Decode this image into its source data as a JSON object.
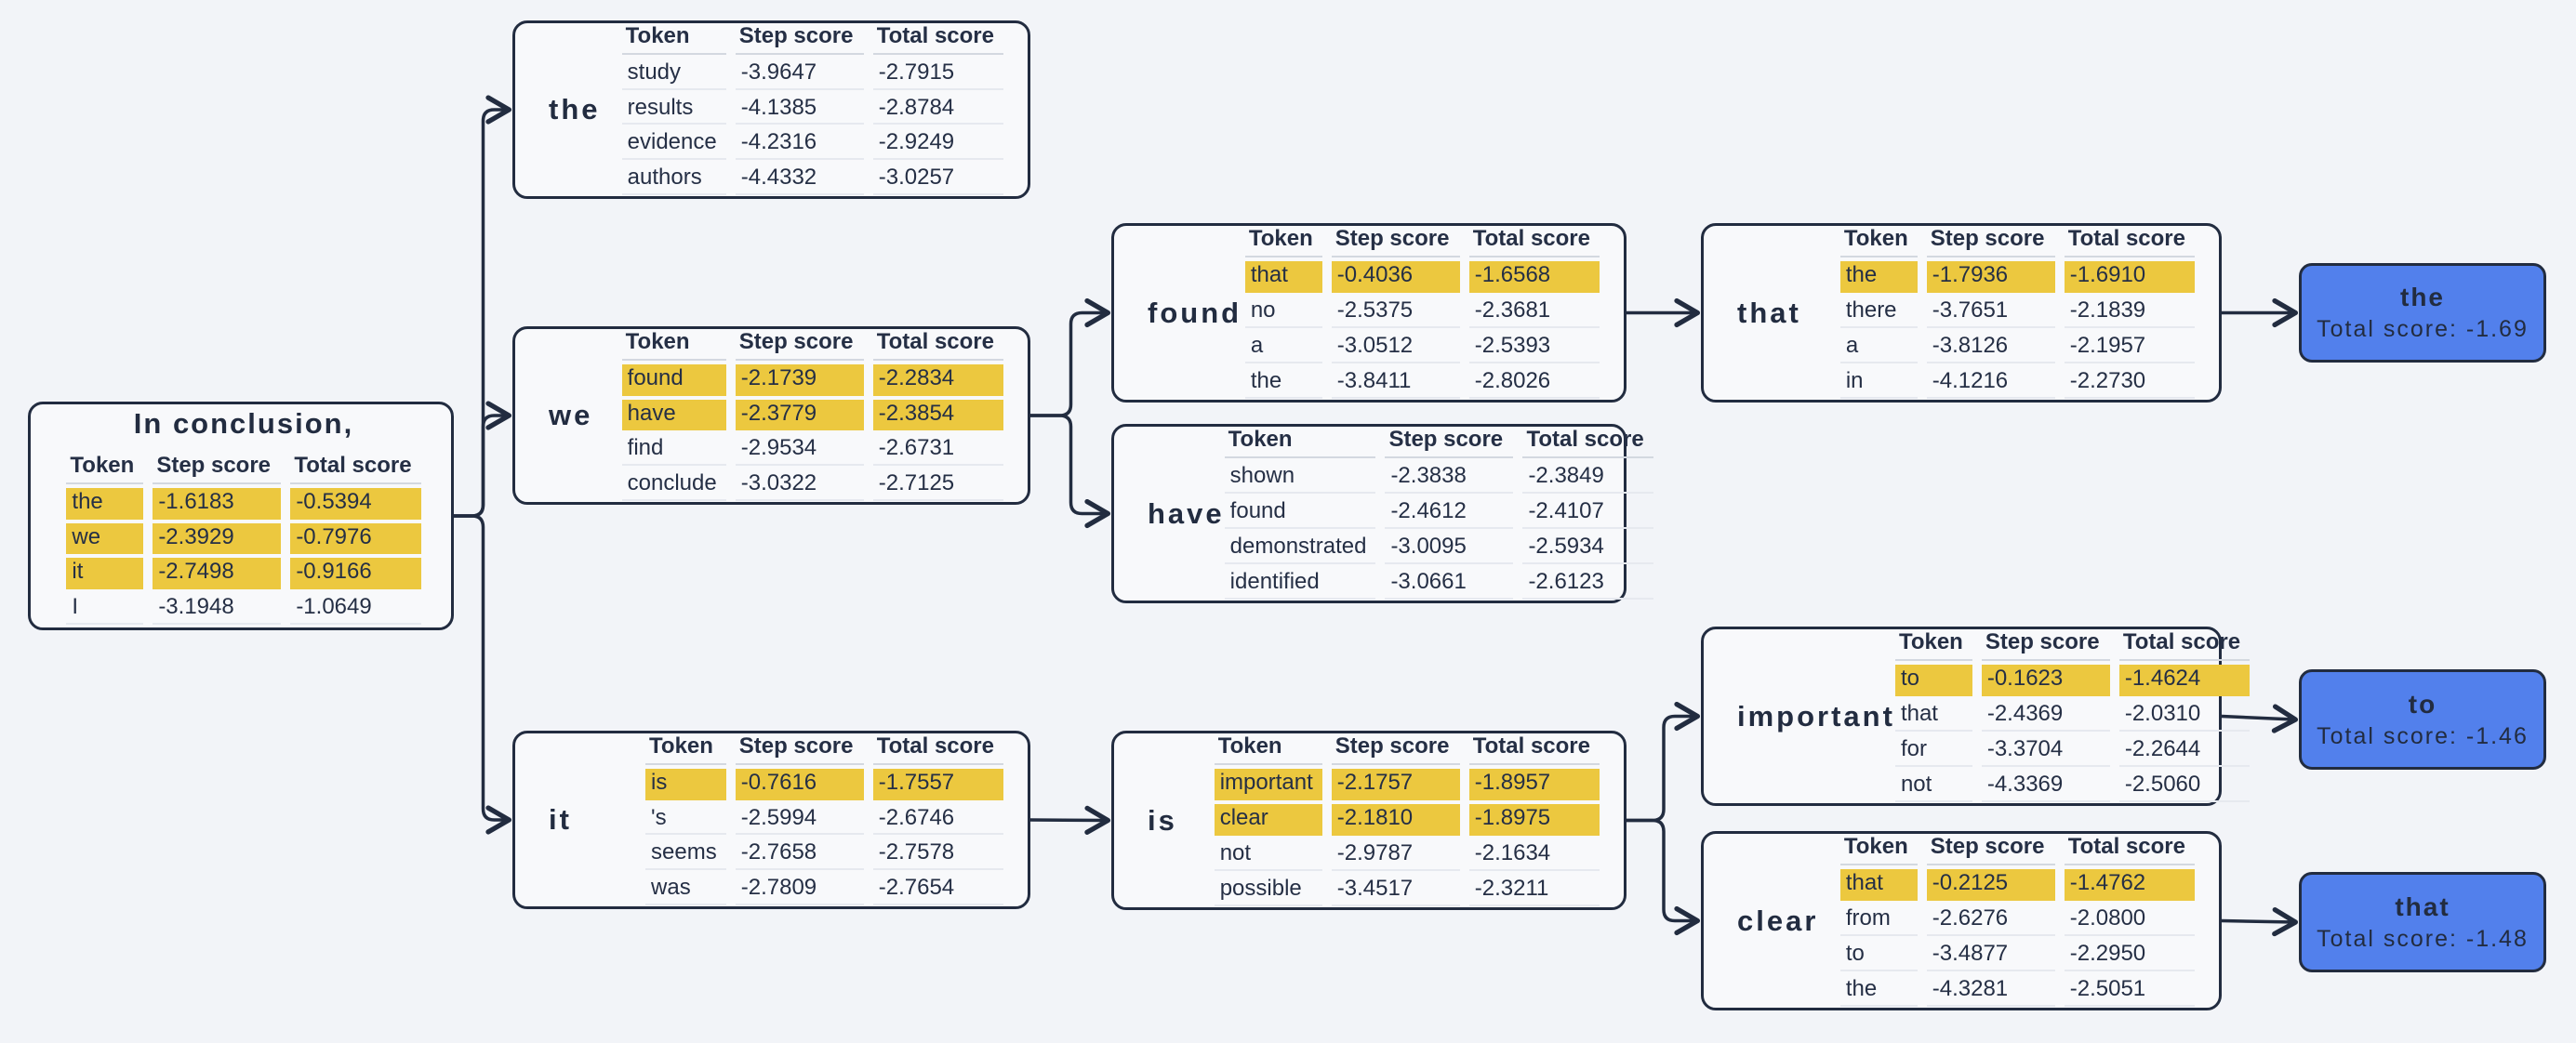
{
  "table_headers": [
    "Token",
    "Step score",
    "Total score"
  ],
  "colors": {
    "background": "#f2f4f8",
    "node_fill": "#f8f9fb",
    "outline": "#222c40",
    "highlight": "#ecc83f",
    "leaf_fill": "#5280ec"
  },
  "nodes": [
    {
      "id": "root",
      "type": "root",
      "title": "In conclusion,",
      "rows": [
        {
          "token": "the",
          "step": "-1.6183",
          "total": "-0.5394",
          "highlight": true
        },
        {
          "token": "we",
          "step": "-2.3929",
          "total": "-0.7976",
          "highlight": true
        },
        {
          "token": "it",
          "step": "-2.7498",
          "total": "-0.9166",
          "highlight": true
        },
        {
          "token": "I",
          "step": "-3.1948",
          "total": "-1.0649",
          "highlight": false
        }
      ]
    },
    {
      "id": "the",
      "type": "branch",
      "label": "the",
      "rows": [
        {
          "token": "study",
          "step": "-3.9647",
          "total": "-2.7915",
          "highlight": false
        },
        {
          "token": "results",
          "step": "-4.1385",
          "total": "-2.8784",
          "highlight": false
        },
        {
          "token": "evidence",
          "step": "-4.2316",
          "total": "-2.9249",
          "highlight": false
        },
        {
          "token": "authors",
          "step": "-4.4332",
          "total": "-3.0257",
          "highlight": false
        }
      ]
    },
    {
      "id": "we",
      "type": "branch",
      "label": "we",
      "rows": [
        {
          "token": "found",
          "step": "-2.1739",
          "total": "-2.2834",
          "highlight": true
        },
        {
          "token": "have",
          "step": "-2.3779",
          "total": "-2.3854",
          "highlight": true
        },
        {
          "token": "find",
          "step": "-2.9534",
          "total": "-2.6731",
          "highlight": false
        },
        {
          "token": "conclude",
          "step": "-3.0322",
          "total": "-2.7125",
          "highlight": false
        }
      ]
    },
    {
      "id": "it",
      "type": "branch",
      "label": "it",
      "rows": [
        {
          "token": "is",
          "step": "-0.7616",
          "total": "-1.7557",
          "highlight": true
        },
        {
          "token": "'s",
          "step": "-2.5994",
          "total": "-2.6746",
          "highlight": false
        },
        {
          "token": "seems",
          "step": "-2.7658",
          "total": "-2.7578",
          "highlight": false
        },
        {
          "token": "was",
          "step": "-2.7809",
          "total": "-2.7654",
          "highlight": false
        }
      ]
    },
    {
      "id": "found",
      "type": "branch",
      "label": "found",
      "rows": [
        {
          "token": "that",
          "step": "-0.4036",
          "total": "-1.6568",
          "highlight": true
        },
        {
          "token": "no",
          "step": "-2.5375",
          "total": "-2.3681",
          "highlight": false
        },
        {
          "token": "a",
          "step": "-3.0512",
          "total": "-2.5393",
          "highlight": false
        },
        {
          "token": "the",
          "step": "-3.8411",
          "total": "-2.8026",
          "highlight": false
        }
      ]
    },
    {
      "id": "have",
      "type": "branch",
      "label": "have",
      "rows": [
        {
          "token": "shown",
          "step": "-2.3838",
          "total": "-2.3849",
          "highlight": false
        },
        {
          "token": "found",
          "step": "-2.4612",
          "total": "-2.4107",
          "highlight": false
        },
        {
          "token": "demonstrated",
          "step": "-3.0095",
          "total": "-2.5934",
          "highlight": false
        },
        {
          "token": "identified",
          "step": "-3.0661",
          "total": "-2.6123",
          "highlight": false
        }
      ]
    },
    {
      "id": "is",
      "type": "branch",
      "label": "is",
      "rows": [
        {
          "token": "important",
          "step": "-2.1757",
          "total": "-1.8957",
          "highlight": true
        },
        {
          "token": "clear",
          "step": "-2.1810",
          "total": "-1.8975",
          "highlight": true
        },
        {
          "token": "not",
          "step": "-2.9787",
          "total": "-2.1634",
          "highlight": false
        },
        {
          "token": "possible",
          "step": "-3.4517",
          "total": "-2.3211",
          "highlight": false
        }
      ]
    },
    {
      "id": "that",
      "type": "branch",
      "label": "that",
      "rows": [
        {
          "token": "the",
          "step": "-1.7936",
          "total": "-1.6910",
          "highlight": true
        },
        {
          "token": "there",
          "step": "-3.7651",
          "total": "-2.1839",
          "highlight": false
        },
        {
          "token": "a",
          "step": "-3.8126",
          "total": "-2.1957",
          "highlight": false
        },
        {
          "token": "in",
          "step": "-4.1216",
          "total": "-2.2730",
          "highlight": false
        }
      ]
    },
    {
      "id": "important",
      "type": "branch",
      "label": "important",
      "rows": [
        {
          "token": "to",
          "step": "-0.1623",
          "total": "-1.4624",
          "highlight": true
        },
        {
          "token": "that",
          "step": "-2.4369",
          "total": "-2.0310",
          "highlight": false
        },
        {
          "token": "for",
          "step": "-3.3704",
          "total": "-2.2644",
          "highlight": false
        },
        {
          "token": "not",
          "step": "-4.3369",
          "total": "-2.5060",
          "highlight": false
        }
      ]
    },
    {
      "id": "clear",
      "type": "branch",
      "label": "clear",
      "rows": [
        {
          "token": "that",
          "step": "-0.2125",
          "total": "-1.4762",
          "highlight": true
        },
        {
          "token": "from",
          "step": "-2.6276",
          "total": "-2.0800",
          "highlight": false
        },
        {
          "token": "to",
          "step": "-3.4877",
          "total": "-2.2950",
          "highlight": false
        },
        {
          "token": "the",
          "step": "-4.3281",
          "total": "-2.5051",
          "highlight": false
        }
      ]
    },
    {
      "id": "leaf_the",
      "type": "leaf",
      "token": "the",
      "score_label": "Total score: -1.69"
    },
    {
      "id": "leaf_to",
      "type": "leaf",
      "token": "to",
      "score_label": "Total score: -1.46"
    },
    {
      "id": "leaf_that",
      "type": "leaf",
      "token": "that",
      "score_label": "Total score: -1.48"
    }
  ],
  "edges": [
    {
      "from": "root",
      "to": "the"
    },
    {
      "from": "root",
      "to": "we"
    },
    {
      "from": "root",
      "to": "it"
    },
    {
      "from": "we",
      "to": "found"
    },
    {
      "from": "we",
      "to": "have"
    },
    {
      "from": "it",
      "to": "is"
    },
    {
      "from": "found",
      "to": "that"
    },
    {
      "from": "is",
      "to": "important"
    },
    {
      "from": "is",
      "to": "clear"
    },
    {
      "from": "that",
      "to": "leaf_the"
    },
    {
      "from": "important",
      "to": "leaf_to"
    },
    {
      "from": "clear",
      "to": "leaf_that"
    }
  ]
}
